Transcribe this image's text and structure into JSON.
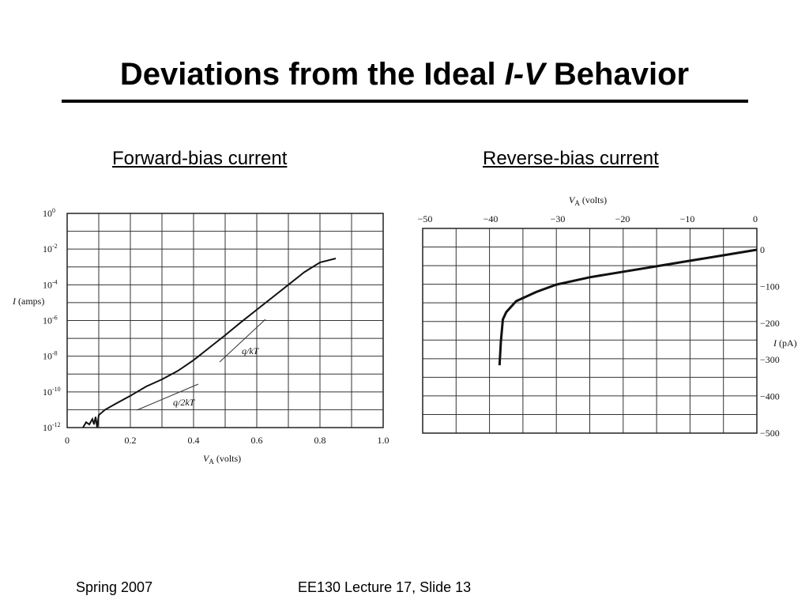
{
  "slide": {
    "title_prefix": "Deviations from the Ideal ",
    "title_italic": "I-V",
    "title_suffix": " Behavior",
    "subtitle_left": "Forward-bias current",
    "subtitle_right": "Reverse-bias current",
    "footer_left": "Spring 2007",
    "footer_center": "EE130 Lecture 17, Slide 13"
  },
  "chart_data": [
    {
      "type": "line",
      "title": "Forward-bias current",
      "xlabel": "V_A (volts)",
      "ylabel": "I (amps)",
      "xlim": [
        0,
        1.0
      ],
      "ylim_log10": [
        -12,
        0
      ],
      "y_scale": "log",
      "grid": true,
      "x_ticks": [
        "0",
        "0.2",
        "0.4",
        "0.6",
        "0.8",
        "1.0"
      ],
      "y_ticks": [
        "10^0",
        "10^-2",
        "10^-4",
        "10^-6",
        "10^-8",
        "10^-10",
        "10^-12"
      ],
      "series": [
        {
          "x": [
            0.05,
            0.06,
            0.07,
            0.08,
            0.085,
            0.09,
            0.095,
            0.1,
            0.12,
            0.15,
            0.2,
            0.25,
            0.3,
            0.35,
            0.4,
            0.45,
            0.5,
            0.55,
            0.6,
            0.65,
            0.7,
            0.75,
            0.8,
            0.85
          ],
          "y": [
            "1e-12",
            "2e-12",
            "1.5e-12",
            "3e-12",
            "1.5e-12",
            "4e-12",
            "1e-12",
            "5e-12",
            "1e-11",
            "2e-11",
            "6e-11",
            "2e-10",
            "5e-10",
            "1.5e-9",
            "6e-9",
            "3e-8",
            "1.5e-7",
            "8e-7",
            "4e-6",
            "2e-5",
            "1e-4",
            "5e-4",
            "1.8e-3",
            "3e-3"
          ]
        }
      ],
      "annotations": [
        {
          "text_prefix": "q/",
          "text_italic": "kT"
        },
        {
          "text_prefix": "q/2",
          "text_italic": "kT"
        }
      ]
    },
    {
      "type": "line",
      "title": "Reverse-bias current",
      "xlabel": "V_A (volts)",
      "ylabel": "I (pA)",
      "xlim": [
        -50,
        0
      ],
      "ylim": [
        -500,
        0
      ],
      "grid": true,
      "x_ticks": [
        "−50",
        "−40",
        "−30",
        "−20",
        "−10",
        "0"
      ],
      "y_ticks": [
        "0",
        "−100",
        "−200",
        "−300",
        "−400",
        "−500"
      ],
      "series": [
        {
          "x": [
            -38.5,
            -38.3,
            -38,
            -37.5,
            -36,
            -33,
            -30,
            -25,
            -20,
            -15,
            -10,
            -5,
            0
          ],
          "y": [
            -315,
            -250,
            -190,
            -170,
            -140,
            -115,
            -95,
            -75,
            -60,
            -45,
            -30,
            -15,
            0
          ]
        }
      ]
    }
  ]
}
